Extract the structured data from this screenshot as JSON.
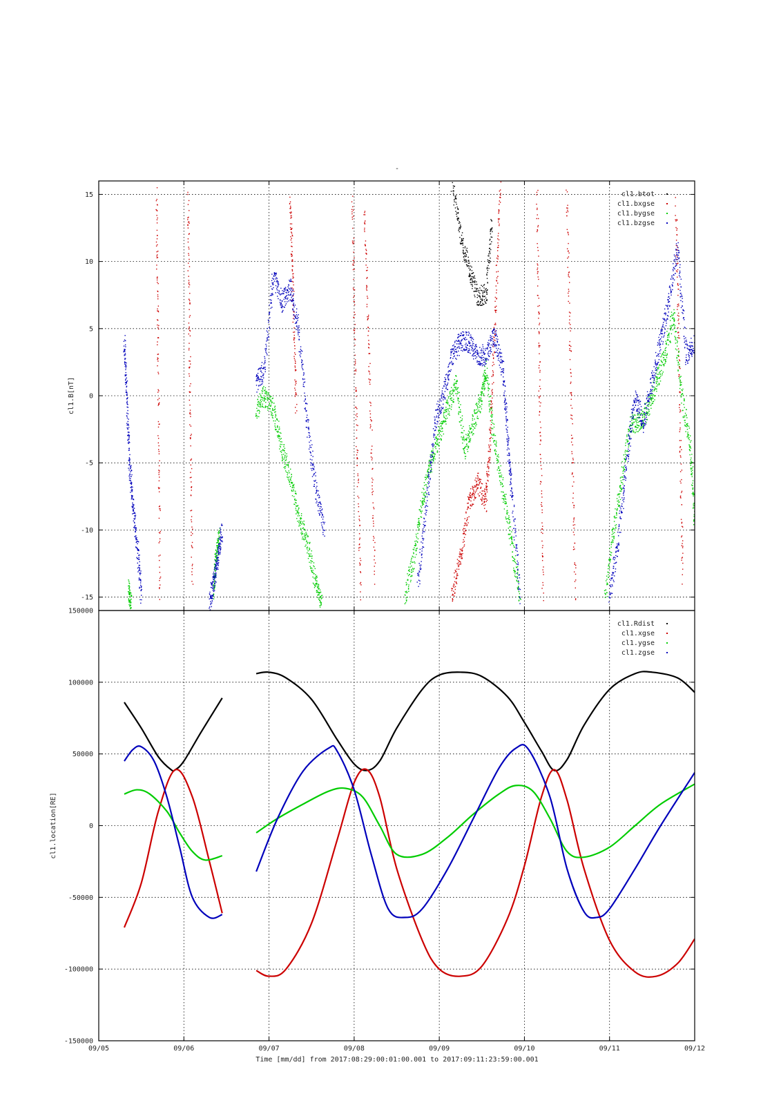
{
  "title": "-",
  "xlabel": "Time [mm/dd]  from 2017:08:29:00:01:00.001  to  2017:09:11:23:59:00.001",
  "colors": {
    "black": "#000000",
    "red": "#cc0000",
    "green": "#00cc00",
    "blue": "#0000bb"
  },
  "x_ticks": [
    "09/05",
    "09/06",
    "09/07",
    "09/08",
    "09/09",
    "09/10",
    "09/11",
    "09/12"
  ],
  "chart_data": [
    {
      "type": "scatter",
      "title": "-",
      "ylabel": "cl1.B[nT]",
      "xlabel": "",
      "xlim": [
        0,
        7
      ],
      "ylim": [
        -16,
        16
      ],
      "yticks": [
        15,
        10,
        5,
        0,
        -5,
        -10,
        -15
      ],
      "ytick_labels": [
        "15",
        "10",
        "5",
        "0",
        "-5",
        "-10",
        "-15"
      ],
      "grid": true,
      "legend": "top-right",
      "series": [
        {
          "name": "cl1.btot",
          "color": "black",
          "segments": [
            {
              "x": [
                4.15,
                4.25,
                4.35,
                4.45,
                4.55,
                4.62
              ],
              "y": [
                16,
                12,
                9.5,
                7.5,
                7.5,
                13
              ]
            }
          ]
        },
        {
          "name": "cl1.bxgse",
          "color": "red",
          "segments": [
            {
              "x": [
                0.68,
                0.7,
                0.72
              ],
              "y": [
                15,
                2,
                -15
              ]
            },
            {
              "x": [
                1.05,
                1.07,
                1.1
              ],
              "y": [
                15,
                2,
                -14
              ]
            },
            {
              "x": [
                2.25,
                2.28,
                2.32
              ],
              "y": [
                15,
                8,
                -1
              ]
            },
            {
              "x": [
                2.98,
                3.02,
                3.08
              ],
              "y": [
                15,
                0,
                -15
              ]
            },
            {
              "x": [
                3.12,
                3.18,
                3.25
              ],
              "y": [
                14,
                2,
                -14
              ]
            },
            {
              "x": [
                4.15,
                4.25,
                4.35,
                4.45,
                4.55,
                4.6,
                4.66,
                4.72
              ],
              "y": [
                -15,
                -12,
                -8,
                -6.5,
                -8,
                -3,
                6,
                16
              ]
            },
            {
              "x": [
                5.15,
                5.18,
                5.22
              ],
              "y": [
                15,
                0,
                -15
              ]
            },
            {
              "x": [
                5.5,
                5.55,
                5.6
              ],
              "y": [
                15,
                0,
                -15
              ]
            },
            {
              "x": [
                6.78,
                6.82,
                6.86
              ],
              "y": [
                14,
                2,
                -14
              ]
            }
          ]
        },
        {
          "name": "cl1.bygse",
          "color": "green",
          "segments": [
            {
              "x": [
                0.35,
                0.38
              ],
              "y": [
                -14.5,
                -15.5
              ]
            },
            {
              "x": [
                1.35,
                1.38,
                1.42
              ],
              "y": [
                -14.5,
                -12,
                -10.5
              ]
            },
            {
              "x": [
                1.85,
                1.95,
                2.05,
                2.15,
                2.25,
                2.35,
                2.45,
                2.55,
                2.62
              ],
              "y": [
                -1,
                0,
                -1,
                -4,
                -6,
                -9,
                -11,
                -14,
                -15.5
              ]
            },
            {
              "x": [
                3.6,
                3.7,
                3.8,
                3.9,
                4.0,
                4.1,
                4.2,
                4.3,
                4.4,
                4.5,
                4.55,
                4.65,
                4.75,
                4.85,
                4.95
              ],
              "y": [
                -15,
                -12,
                -8,
                -5,
                -3,
                -1,
                1,
                -4,
                -2,
                0,
                2,
                -3.5,
                -7,
                -11,
                -15
              ]
            },
            {
              "x": [
                5.95,
                6.05,
                6.15,
                6.25,
                6.35,
                6.45,
                6.55,
                6.65,
                6.75,
                6.85,
                6.95,
                7.0
              ],
              "y": [
                -15,
                -10,
                -6,
                -2,
                -2,
                -1,
                1,
                3,
                6,
                0,
                -4,
                -9
              ]
            }
          ]
        },
        {
          "name": "cl1.bzgse",
          "color": "blue",
          "segments": [
            {
              "x": [
                0.3,
                0.33,
                0.36,
                0.4,
                0.45,
                0.5
              ],
              "y": [
                4,
                0,
                -5,
                -8,
                -11,
                -15
              ]
            },
            {
              "x": [
                1.3,
                1.35,
                1.4,
                1.45
              ],
              "y": [
                -15.5,
                -14,
                -12,
                -10
              ]
            },
            {
              "x": [
                1.85,
                1.95,
                2.05,
                2.15,
                2.25,
                2.35,
                2.45,
                2.55,
                2.65
              ],
              "y": [
                1,
                2,
                9,
                7,
                8,
                5,
                -2,
                -7,
                -10
              ]
            },
            {
              "x": [
                3.75,
                3.85,
                3.95,
                4.05,
                4.15,
                4.25,
                4.35,
                4.45,
                4.55,
                4.65,
                4.75,
                4.8,
                4.85,
                4.95
              ],
              "y": [
                -14,
                -8,
                -2,
                0,
                3,
                4,
                4,
                3,
                3,
                4.5,
                2,
                -3,
                -7,
                -15
              ]
            },
            {
              "x": [
                6.0,
                6.1,
                6.2,
                6.3,
                6.4,
                6.5,
                6.6,
                6.7,
                6.8,
                6.9,
                7.0
              ],
              "y": [
                -15,
                -11,
                -5,
                0,
                -2,
                1,
                4,
                7,
                11,
                3,
                4
              ]
            }
          ]
        }
      ]
    },
    {
      "type": "line",
      "ylabel": "cl1.location[RE]",
      "xlabel": "Time [mm/dd]  from 2017:08:29:00:01:00.001  to  2017:09:11:23:59:00.001",
      "xlim": [
        0,
        7
      ],
      "ylim": [
        -150000,
        150000
      ],
      "yticks": [
        150000,
        100000,
        50000,
        0,
        -50000,
        -100000,
        -150000
      ],
      "ytick_labels": [
        "150000",
        "100000",
        "50000",
        "0",
        "-50000",
        "-100000",
        "-150000"
      ],
      "grid": true,
      "legend": "top-right",
      "series": [
        {
          "name": "cl1.Rdist",
          "color": "black",
          "segments": [
            {
              "x": [
                0.3,
                0.5,
                0.7,
                0.85,
                0.9,
                1.0,
                1.2,
                1.45
              ],
              "y": [
                86000,
                68000,
                48000,
                39000,
                39000,
                45000,
                65000,
                89000
              ]
            },
            {
              "x": [
                1.85,
                2.0,
                2.2,
                2.5,
                2.8,
                3.0,
                3.15,
                3.3,
                3.5,
                3.8,
                4.0,
                4.25,
                4.5,
                4.8,
                5.0,
                5.2,
                5.35,
                5.5,
                5.7,
                6.0,
                6.3,
                6.5,
                6.8,
                7.0
              ],
              "y": [
                106000,
                107000,
                103000,
                88000,
                60000,
                43000,
                38500,
                45000,
                68000,
                95000,
                105000,
                107000,
                104000,
                90000,
                72000,
                52000,
                38500,
                46000,
                70000,
                95000,
                106000,
                107000,
                103000,
                93000
              ]
            }
          ]
        },
        {
          "name": "cl1.xgse",
          "color": "red",
          "segments": [
            {
              "x": [
                0.3,
                0.5,
                0.7,
                0.9,
                1.1,
                1.3,
                1.45
              ],
              "y": [
                -71000,
                -40000,
                10000,
                39000,
                20000,
                -25000,
                -61000
              ]
            },
            {
              "x": [
                1.85,
                2.0,
                2.2,
                2.5,
                2.8,
                3.0,
                3.15,
                3.3,
                3.5,
                3.8,
                4.0,
                4.25,
                4.5,
                4.8,
                5.0,
                5.2,
                5.35,
                5.5,
                5.7,
                6.0,
                6.3,
                6.55,
                6.8,
                7.0
              ],
              "y": [
                -101000,
                -105000,
                -100000,
                -68000,
                -10000,
                30000,
                39000,
                20000,
                -30000,
                -80000,
                -100000,
                -105000,
                -98000,
                -65000,
                -28000,
                20000,
                39000,
                18000,
                -30000,
                -80000,
                -102000,
                -105000,
                -96000,
                -79000
              ]
            }
          ]
        },
        {
          "name": "cl1.ygse",
          "color": "green",
          "segments": [
            {
              "x": [
                0.3,
                0.45,
                0.6,
                0.8,
                0.95,
                1.1,
                1.25,
                1.45
              ],
              "y": [
                22000,
                25000,
                22000,
                10000,
                -5000,
                -18000,
                -24000,
                -21000
              ]
            },
            {
              "x": [
                1.85,
                2.1,
                2.4,
                2.7,
                2.9,
                3.1,
                3.3,
                3.5,
                3.8,
                4.1,
                4.4,
                4.7,
                4.9,
                5.1,
                5.3,
                5.5,
                5.7,
                6.0,
                6.3,
                6.6,
                7.0
              ],
              "y": [
                -5000,
                5000,
                15000,
                24000,
                26000,
                20000,
                0,
                -20000,
                -20000,
                -8000,
                8000,
                22000,
                28000,
                24000,
                5000,
                -18000,
                -22000,
                -15000,
                0,
                15000,
                29000
              ]
            }
          ]
        },
        {
          "name": "cl1.zgse",
          "color": "blue",
          "segments": [
            {
              "x": [
                0.3,
                0.4,
                0.5,
                0.65,
                0.8,
                0.95,
                1.1,
                1.3,
                1.45
              ],
              "y": [
                45000,
                53000,
                55000,
                45000,
                20000,
                -15000,
                -50000,
                -64000,
                -62000
              ]
            },
            {
              "x": [
                1.85,
                2.1,
                2.4,
                2.7,
                2.8,
                3.0,
                3.2,
                3.4,
                3.6,
                3.8,
                4.1,
                4.4,
                4.7,
                4.9,
                5.05,
                5.3,
                5.5,
                5.7,
                5.85,
                6.0,
                6.3,
                6.6,
                7.0
              ],
              "y": [
                -32000,
                5000,
                38000,
                54000,
                52000,
                25000,
                -20000,
                -58000,
                -64000,
                -58000,
                -30000,
                5000,
                40000,
                54000,
                53000,
                20000,
                -30000,
                -60000,
                -64000,
                -58000,
                -30000,
                0,
                37000
              ]
            }
          ]
        }
      ]
    }
  ]
}
